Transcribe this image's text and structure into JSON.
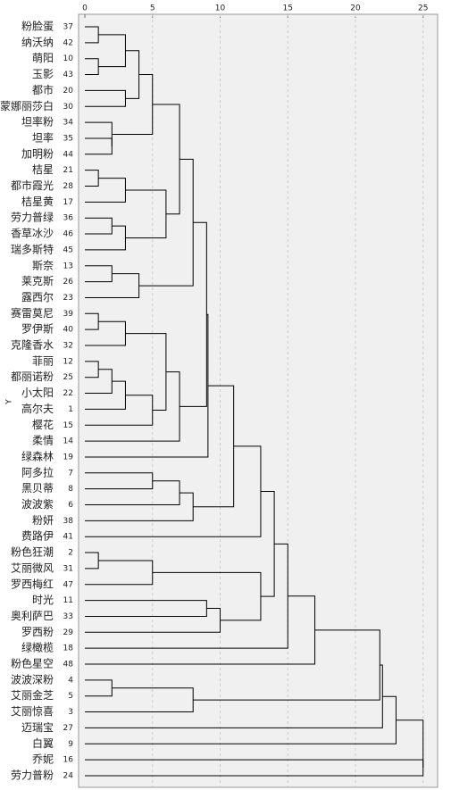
{
  "chart_data": {
    "type": "dendrogram",
    "y_label": "Y",
    "xlim": [
      0,
      25.6
    ],
    "xticks": [
      0,
      5,
      10,
      15,
      20,
      25
    ],
    "grid": true,
    "color": "#000000",
    "leaves": [
      {
        "label": "粉脸蛋",
        "id": 37
      },
      {
        "label": "纳沃纳",
        "id": 42
      },
      {
        "label": "萌阳",
        "id": 10
      },
      {
        "label": "玉影",
        "id": 43
      },
      {
        "label": "都市",
        "id": 20
      },
      {
        "label": "蒙娜丽莎白",
        "id": 30
      },
      {
        "label": "坦率粉",
        "id": 34
      },
      {
        "label": "坦率",
        "id": 35
      },
      {
        "label": "加明粉",
        "id": 44
      },
      {
        "label": "桔星",
        "id": 21
      },
      {
        "label": "都市霞光",
        "id": 28
      },
      {
        "label": "桔星黄",
        "id": 17
      },
      {
        "label": "劳力普绿",
        "id": 36
      },
      {
        "label": "香草冰沙",
        "id": 46
      },
      {
        "label": "瑞多斯特",
        "id": 45
      },
      {
        "label": "斯奈",
        "id": 13
      },
      {
        "label": "莱克斯",
        "id": 26
      },
      {
        "label": "露西尔",
        "id": 23
      },
      {
        "label": "赛雷莫尼",
        "id": 39
      },
      {
        "label": "罗伊斯",
        "id": 40
      },
      {
        "label": "克隆香水",
        "id": 32
      },
      {
        "label": "菲丽",
        "id": 12
      },
      {
        "label": "都丽诺粉",
        "id": 25
      },
      {
        "label": "小太阳",
        "id": 22
      },
      {
        "label": "高尔夫",
        "id": 1
      },
      {
        "label": "樱花",
        "id": 15
      },
      {
        "label": "柔情",
        "id": 14
      },
      {
        "label": "绿森林",
        "id": 19
      },
      {
        "label": "阿多拉",
        "id": 7
      },
      {
        "label": "黑贝蒂",
        "id": 8
      },
      {
        "label": "波波紫",
        "id": 6
      },
      {
        "label": "粉妍",
        "id": 38
      },
      {
        "label": "费路伊",
        "id": 41
      },
      {
        "label": "粉色狂潮",
        "id": 2
      },
      {
        "label": "艾丽微风",
        "id": 31
      },
      {
        "label": "罗西梅红",
        "id": 47
      },
      {
        "label": "时光",
        "id": 11
      },
      {
        "label": "奥利萨巴",
        "id": 33
      },
      {
        "label": "罗西粉",
        "id": 29
      },
      {
        "label": "绿橄榄",
        "id": 18
      },
      {
        "label": "粉色星空",
        "id": 48
      },
      {
        "label": "波波深粉",
        "id": 4
      },
      {
        "label": "艾丽金芝",
        "id": 5
      },
      {
        "label": "艾丽惊喜",
        "id": 3
      },
      {
        "label": "迈瑞宝",
        "id": 27
      },
      {
        "label": "白翼",
        "id": 9
      },
      {
        "label": "乔妮",
        "id": 16
      },
      {
        "label": "劳力普粉",
        "id": 24
      }
    ],
    "merges": [
      {
        "left": 0,
        "right": 1,
        "height": 1
      },
      {
        "left": 2,
        "right": 3,
        "height": 1
      },
      {
        "left": 48,
        "right": 49,
        "height": 3
      },
      {
        "left": 4,
        "right": 5,
        "height": 3
      },
      {
        "left": 50,
        "right": 51,
        "height": 4
      },
      {
        "left": 7,
        "right": 8,
        "height": 2
      },
      {
        "left": 6,
        "right": 53,
        "height": 2
      },
      {
        "left": 52,
        "right": 54,
        "height": 5
      },
      {
        "left": 9,
        "right": 10,
        "height": 1
      },
      {
        "left": 56,
        "right": 11,
        "height": 3
      },
      {
        "left": 12,
        "right": 13,
        "height": 2
      },
      {
        "left": 58,
        "right": 14,
        "height": 3
      },
      {
        "left": 57,
        "right": 59,
        "height": 6
      },
      {
        "left": 55,
        "right": 60,
        "height": 7
      },
      {
        "left": 15,
        "right": 16,
        "height": 2
      },
      {
        "left": 62,
        "right": 17,
        "height": 4
      },
      {
        "left": 61,
        "right": 63,
        "height": 8
      },
      {
        "left": 18,
        "right": 19,
        "height": 1
      },
      {
        "left": 65,
        "right": 20,
        "height": 3
      },
      {
        "left": 21,
        "right": 22,
        "height": 1
      },
      {
        "left": 67,
        "right": 23,
        "height": 2
      },
      {
        "left": 68,
        "right": 24,
        "height": 3
      },
      {
        "left": 69,
        "right": 25,
        "height": 5
      },
      {
        "left": 66,
        "right": 70,
        "height": 6
      },
      {
        "left": 71,
        "right": 26,
        "height": 7
      },
      {
        "left": 64,
        "right": 72,
        "height": 9
      },
      {
        "left": 73,
        "right": 27,
        "height": 9.1
      },
      {
        "left": 28,
        "right": 29,
        "height": 5
      },
      {
        "left": 75,
        "right": 30,
        "height": 7
      },
      {
        "left": 76,
        "right": 31,
        "height": 8
      },
      {
        "left": 74,
        "right": 77,
        "height": 11
      },
      {
        "left": 78,
        "right": 32,
        "height": 13
      },
      {
        "left": 33,
        "right": 34,
        "height": 1
      },
      {
        "left": 80,
        "right": 35,
        "height": 5
      },
      {
        "left": 36,
        "right": 37,
        "height": 9
      },
      {
        "left": 82,
        "right": 38,
        "height": 10
      },
      {
        "left": 81,
        "right": 83,
        "height": 13
      },
      {
        "left": 79,
        "right": 84,
        "height": 14
      },
      {
        "left": 85,
        "right": 39,
        "height": 15
      },
      {
        "left": 86,
        "right": 40,
        "height": 17
      },
      {
        "left": 41,
        "right": 42,
        "height": 2
      },
      {
        "left": 88,
        "right": 43,
        "height": 8
      },
      {
        "left": 87,
        "right": 89,
        "height": 21.8
      },
      {
        "left": 90,
        "right": 44,
        "height": 22
      },
      {
        "left": 91,
        "right": 45,
        "height": 23
      },
      {
        "left": 46,
        "right": 47,
        "height": 25
      },
      {
        "left": 92,
        "right": 93,
        "height": 25
      }
    ]
  }
}
